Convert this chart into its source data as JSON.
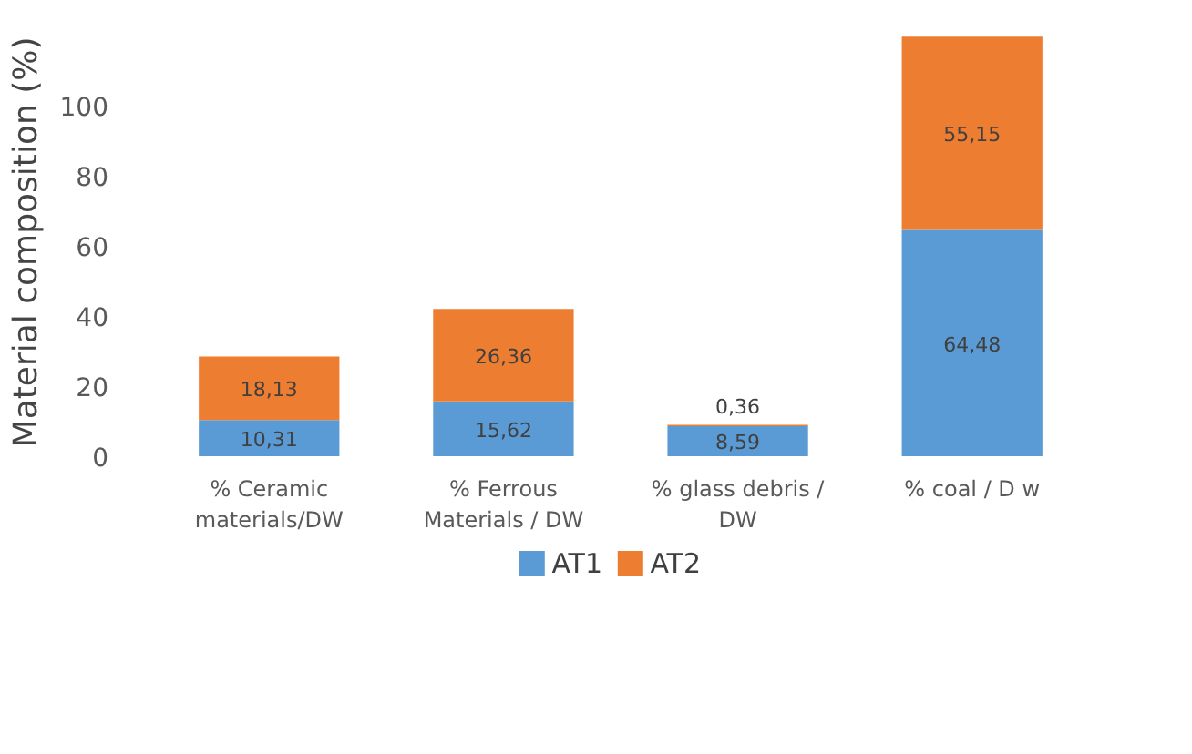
{
  "chart_data": {
    "type": "bar",
    "stacked": true,
    "ylabel": "Material composition (%)",
    "categories": [
      "% Ceramic materials/DW",
      "% Ferrous Materials / DW",
      "% glass debris / DW",
      "% coal / D w"
    ],
    "series": [
      {
        "name": "AT1",
        "color": "#5b9bd5",
        "values": [
          10.31,
          15.62,
          8.59,
          64.48
        ],
        "value_labels": [
          "10,31",
          "15,62",
          "8,59",
          "64,48"
        ]
      },
      {
        "name": "AT2",
        "color": "#ed7d31",
        "values": [
          18.13,
          26.36,
          0.36,
          55.15
        ],
        "value_labels": [
          "18,13",
          "26,36",
          "0,36",
          "55,15"
        ]
      }
    ],
    "ylim": [
      0,
      122
    ],
    "yticks": [
      0,
      20,
      40,
      60,
      80,
      100
    ],
    "grid": false,
    "legend": "bottom"
  }
}
